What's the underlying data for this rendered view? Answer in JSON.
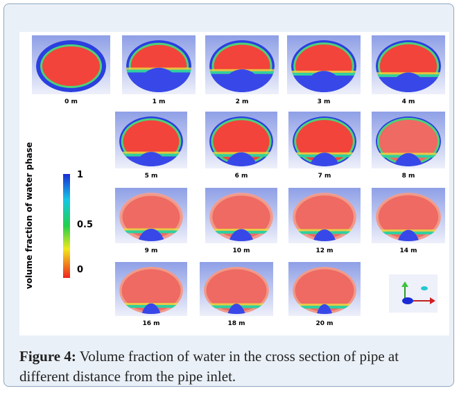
{
  "figure": {
    "panels": [
      {
        "label": "0 m"
      },
      {
        "label": "1 m"
      },
      {
        "label": "2 m"
      },
      {
        "label": "3 m"
      },
      {
        "label": "4 m"
      },
      {
        "label": "5 m"
      },
      {
        "label": "6 m"
      },
      {
        "label": "7 m"
      },
      {
        "label": "8 m"
      },
      {
        "label": "9 m"
      },
      {
        "label": "10 m"
      },
      {
        "label": "12 m"
      },
      {
        "label": "14 m"
      },
      {
        "label": "16 m"
      },
      {
        "label": "18 m"
      },
      {
        "label": "20 m"
      }
    ],
    "colorbar": {
      "title": "volume fraction of water phase",
      "ticks": [
        "1",
        "0.5",
        "0"
      ]
    }
  },
  "caption": {
    "label": "Figure 4:",
    "text": "Volume fraction of water in the cross section of pipe at different distance from the pipe inlet."
  }
}
